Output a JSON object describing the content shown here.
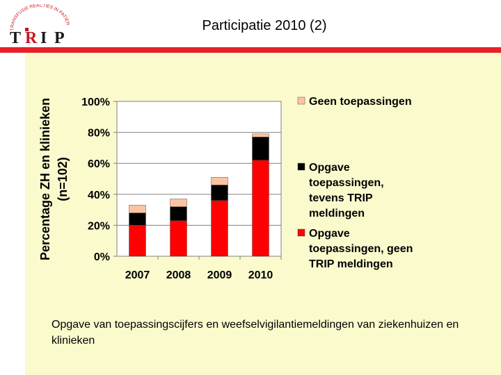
{
  "slide": {
    "title": "Participatie 2010 (2)",
    "caption": "Opgave van toepassingscijfers en weefselvigilantiemeldingen van ziekenhuizen en klinieken"
  },
  "logo": {
    "letters": [
      "T",
      "R",
      "I",
      "P"
    ],
    "arc_text": "TRANSFUSIE REACTIES IN PATIENTEN"
  },
  "colors": {
    "accent_red": "#e8202a",
    "panel_bg": "#fafacd",
    "series_red": "#ff0000",
    "series_black": "#000000",
    "series_peach": "#fbc49f"
  },
  "chart_data": {
    "type": "bar",
    "stacked": true,
    "categories": [
      "2007",
      "2008",
      "2009",
      "2010"
    ],
    "ylabel": "Percentage ZH en klinieken (n=102)",
    "ylim": [
      0,
      100
    ],
    "yticks": [
      "0%",
      "20%",
      "40%",
      "60%",
      "80%",
      "100%"
    ],
    "grid": true,
    "legend_position": "right",
    "series": [
      {
        "name": "Opgave toepassingen, geen TRIP meldingen",
        "color": "#ff0000",
        "values": [
          20,
          23,
          36,
          62
        ]
      },
      {
        "name": "Opgave toepassingen, tevens TRIP meldingen",
        "color": "#000000",
        "values": [
          8,
          9,
          10,
          15
        ]
      },
      {
        "name": "Geen toepassingen",
        "color": "#fbc49f",
        "values": [
          5,
          5,
          5,
          2
        ]
      }
    ],
    "legend_lines": [
      [
        "Geen toepassingen"
      ],
      [
        "Opgave",
        "toepassingen,",
        "tevens TRIP",
        "meldingen"
      ],
      [
        "Opgave",
        "toepassingen, geen",
        "TRIP meldingen"
      ]
    ]
  }
}
